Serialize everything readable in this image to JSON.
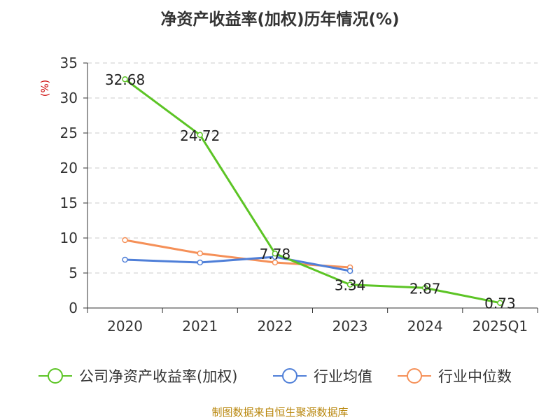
{
  "chart_data": {
    "type": "line",
    "title": "净资产收益率(加权)历年情况(%)",
    "ylabel": "(%)",
    "xlabel": "",
    "ylim": [
      0,
      35
    ],
    "yticks": [
      0,
      5,
      10,
      15,
      20,
      25,
      30,
      35
    ],
    "categories": [
      "2020",
      "2021",
      "2022",
      "2023",
      "2024",
      "2025Q1"
    ],
    "grid": true,
    "legend_position": "bottom",
    "series": [
      {
        "name": "公司净资产收益率(加权)",
        "color": "#5cc425",
        "values": [
          32.68,
          24.72,
          7.78,
          3.34,
          2.87,
          0.73
        ],
        "labels": [
          "32.68",
          "24.72",
          "7.78",
          "3.34",
          "2.87",
          "0.73"
        ]
      },
      {
        "name": "行业均值",
        "color": "#4f7fd8",
        "values": [
          6.9,
          6.5,
          7.3,
          5.3,
          null,
          null
        ]
      },
      {
        "name": "行业中位数",
        "color": "#f59058",
        "values": [
          9.7,
          7.8,
          6.5,
          5.8,
          null,
          null
        ]
      }
    ]
  },
  "footer": {
    "source": "制图数据来自恒生聚源数据库"
  }
}
